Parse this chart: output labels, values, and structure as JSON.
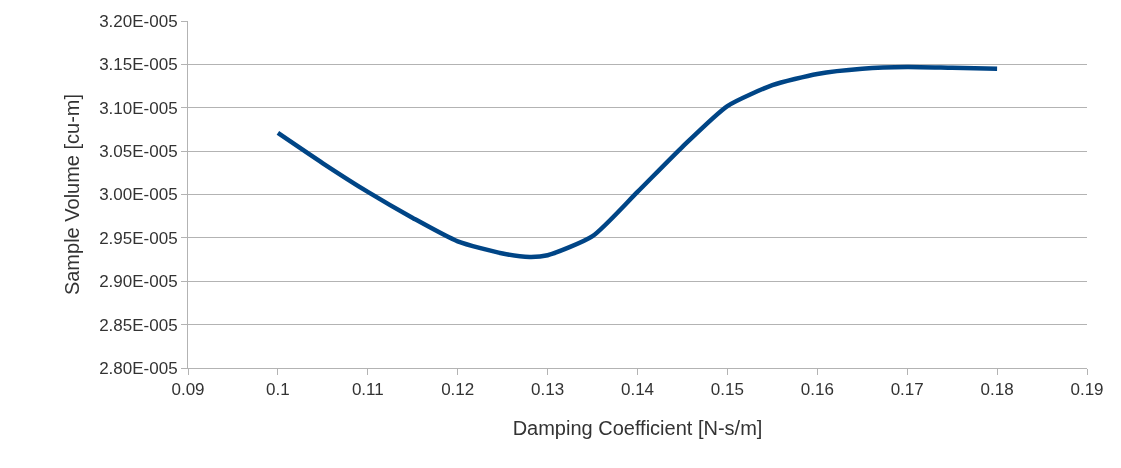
{
  "chart_data": {
    "type": "line",
    "xlabel": "Damping Coefficient [N-s/m]",
    "ylabel": "Sample Volume [cu-m]",
    "x": [
      0.1,
      0.105,
      0.11,
      0.115,
      0.12,
      0.125,
      0.128,
      0.13,
      0.135,
      0.14,
      0.145,
      0.15,
      0.155,
      0.16,
      0.165,
      0.17,
      0.175,
      0.18
    ],
    "series": [
      {
        "color": "#004586",
        "values": [
          3.071e-05,
          3.036e-05,
          3.003e-05,
          2.973e-05,
          2.946e-05,
          2.932e-05,
          2.928e-05,
          2.93e-05,
          2.952e-05,
          3.003e-05,
          3.055e-05,
          3.102e-05,
          3.126e-05,
          3.139e-05,
          3.145e-05,
          3.147e-05,
          3.146e-05,
          3.145e-05
        ]
      }
    ],
    "xlim": [
      0.09,
      0.19
    ],
    "xticks": [
      0.09,
      0.1,
      0.11,
      0.12,
      0.13,
      0.14,
      0.15,
      0.16,
      0.17,
      0.18,
      0.19
    ],
    "ylim": [
      2.8e-05,
      3.2e-05
    ],
    "yticks": [
      {
        "value": 2.8e-05,
        "label": "2.80E-005"
      },
      {
        "value": 2.85e-05,
        "label": "2.85E-005"
      },
      {
        "value": 2.9e-05,
        "label": "2.90E-005"
      },
      {
        "value": 2.95e-05,
        "label": "2.95E-005"
      },
      {
        "value": 3e-05,
        "label": "3.00E-005"
      },
      {
        "value": 3.05e-05,
        "label": "3.05E-005"
      },
      {
        "value": 3.1e-05,
        "label": "3.10E-005"
      },
      {
        "value": 3.15e-05,
        "label": "3.15E-005"
      },
      {
        "value": 3.2e-05,
        "label": "3.20E-005"
      }
    ],
    "grid": "y",
    "marker": "none",
    "line_style": "solid"
  }
}
